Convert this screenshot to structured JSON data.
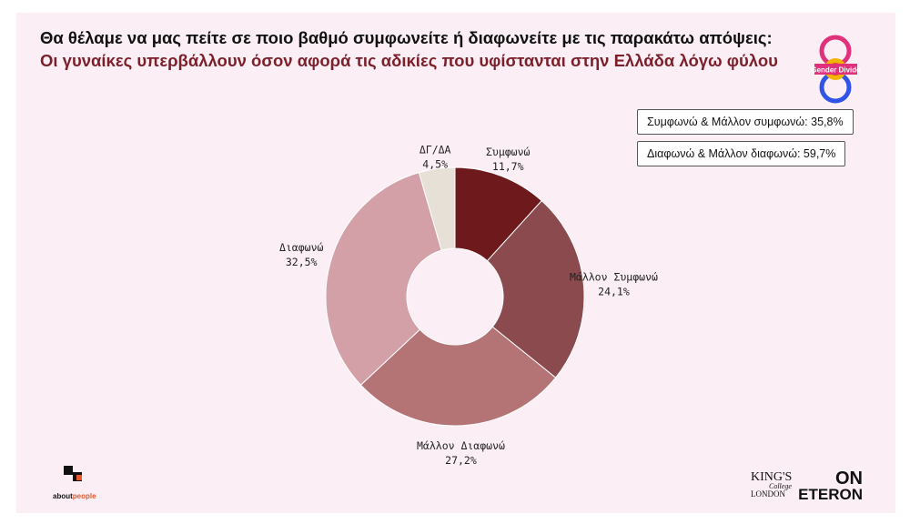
{
  "title": "Θα θέλαμε να μας πείτε σε ποιο βαθμό συμφωνείτε ή διαφωνείτε με τις παρακάτω απόψεις:",
  "subtitle": "Οι γυναίκες υπερβάλλουν όσον αφορά τις αδικίες που υφίστανται στην Ελλάδα λόγω φύλου",
  "summary": {
    "agree": "Συμφωνώ & Μάλλον συμφωνώ: 35,8%",
    "disagree": "Διαφωνώ & Μάλλον διαφωνώ: 59,7%"
  },
  "logos": {
    "gender_divide": "Gender Divide",
    "aboutpeople_about": "about",
    "aboutpeople_people": "people",
    "kings_line1": "KING'S",
    "kings_line2": "College",
    "kings_line3": "LONDON",
    "on": "ON",
    "eteron": "ETERON"
  },
  "colors": {
    "background": "#fbeff5",
    "subtitle": "#7b1f2a",
    "aboutpeople_accent": "#e8582a"
  },
  "chart_data": {
    "type": "pie",
    "donut": true,
    "categories": [
      "Συμφωνώ",
      "Μάλλον Συμφωνώ",
      "Μάλλον Διαφωνώ",
      "Διαφωνώ",
      "ΔΓ/ΔΑ"
    ],
    "values": [
      11.7,
      24.1,
      27.2,
      32.5,
      4.5
    ],
    "value_labels": [
      "11,7%",
      "24,1%",
      "27,2%",
      "32,5%",
      "4,5%"
    ],
    "colors": [
      "#6e1a1d",
      "#8a4a4e",
      "#b47476",
      "#d4a0a7",
      "#e7e0d6"
    ]
  }
}
